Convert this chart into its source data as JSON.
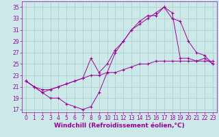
{
  "line1_x": [
    0,
    1,
    2,
    3,
    4,
    5,
    6,
    7,
    8,
    9,
    10,
    11,
    12,
    13,
    14,
    15,
    16,
    17,
    18,
    19,
    20,
    21,
    22,
    23
  ],
  "line1_y": [
    22,
    21,
    20,
    19,
    19,
    18,
    17.5,
    17,
    17.5,
    20,
    23.5,
    27,
    29,
    31,
    32.5,
    33.5,
    33.5,
    35,
    34,
    26,
    26,
    25.5,
    26,
    25
  ],
  "line2_x": [
    0,
    1,
    2,
    3,
    4,
    5,
    6,
    7,
    8,
    9,
    10,
    11,
    12,
    13,
    14,
    15,
    16,
    17,
    18,
    19,
    20,
    21,
    22,
    23
  ],
  "line2_y": [
    22,
    21,
    20.5,
    20.5,
    21,
    21.5,
    22,
    22.5,
    26,
    23.5,
    25,
    27.5,
    29,
    31,
    32,
    33,
    34,
    35,
    33,
    32.5,
    29,
    27,
    26.5,
    25
  ],
  "line3_x": [
    0,
    1,
    2,
    3,
    4,
    5,
    6,
    7,
    8,
    9,
    10,
    11,
    12,
    13,
    14,
    15,
    16,
    17,
    18,
    19,
    20,
    21,
    22,
    23
  ],
  "line3_y": [
    22,
    21,
    20,
    20.5,
    21,
    21.5,
    22,
    22.5,
    23,
    23,
    23.5,
    23.5,
    24,
    24.5,
    25,
    25,
    25.5,
    25.5,
    25.5,
    25.5,
    25.5,
    25.5,
    25.5,
    25.5
  ],
  "line_color": "#990099",
  "bg_color": "#cce8e8",
  "grid_color": "#aacccc",
  "xlim": [
    -0.5,
    23.5
  ],
  "ylim": [
    16.5,
    36
  ],
  "yticks": [
    17,
    19,
    21,
    23,
    25,
    27,
    29,
    31,
    33,
    35
  ],
  "xticks": [
    0,
    1,
    2,
    3,
    4,
    5,
    6,
    7,
    8,
    9,
    10,
    11,
    12,
    13,
    14,
    15,
    16,
    17,
    18,
    19,
    20,
    21,
    22,
    23
  ],
  "xlabel": "Windchill (Refroidissement éolien,°C)",
  "xlabel_fontsize": 6.5,
  "tick_fontsize": 5.5
}
